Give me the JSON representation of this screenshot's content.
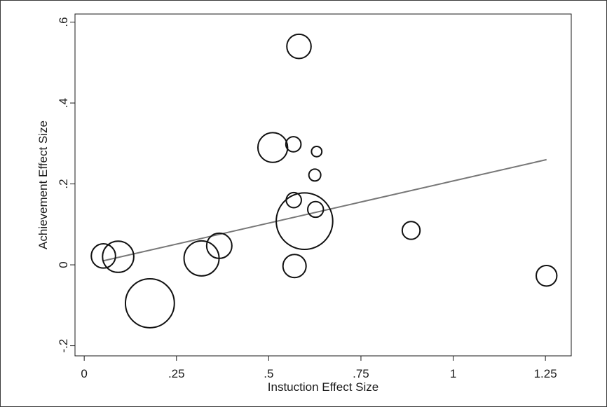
{
  "chart_data": {
    "type": "scatter",
    "xlabel": "Instuction Effect Size",
    "ylabel": "Achievement Effect Size",
    "xlim": [
      -0.025,
      1.32
    ],
    "ylim": [
      -0.225,
      0.62
    ],
    "x_ticks": [
      {
        "value": 0,
        "label": "0"
      },
      {
        "value": 0.25,
        "label": ".25"
      },
      {
        "value": 0.5,
        "label": ".5"
      },
      {
        "value": 0.75,
        "label": ".75"
      },
      {
        "value": 1,
        "label": "1"
      },
      {
        "value": 1.25,
        "label": "1.25"
      }
    ],
    "y_ticks": [
      {
        "value": -0.2,
        "label": "-.2"
      },
      {
        "value": 0,
        "label": "0"
      },
      {
        "value": 0.2,
        "label": ".2"
      },
      {
        "value": 0.4,
        "label": ".4"
      },
      {
        "value": 0.6,
        "label": ".6"
      }
    ],
    "points": [
      {
        "x": 0.052,
        "y": 0.022,
        "weight": 3.3
      },
      {
        "x": 0.092,
        "y": 0.02,
        "weight": 5.5
      },
      {
        "x": 0.178,
        "y": -0.095,
        "weight": 13.5
      },
      {
        "x": 0.318,
        "y": 0.016,
        "weight": 6.9
      },
      {
        "x": 0.366,
        "y": 0.047,
        "weight": 3.6
      },
      {
        "x": 0.511,
        "y": 0.29,
        "weight": 5.0
      },
      {
        "x": 0.567,
        "y": 0.298,
        "weight": 1.3
      },
      {
        "x": 0.568,
        "y": 0.16,
        "weight": 1.3
      },
      {
        "x": 0.57,
        "y": -0.003,
        "weight": 3.0
      },
      {
        "x": 0.582,
        "y": 0.54,
        "weight": 3.3
      },
      {
        "x": 0.597,
        "y": 0.108,
        "weight": 18.0
      },
      {
        "x": 0.625,
        "y": 0.222,
        "weight": 0.8
      },
      {
        "x": 0.627,
        "y": 0.137,
        "weight": 1.4
      },
      {
        "x": 0.63,
        "y": 0.28,
        "weight": 0.6
      },
      {
        "x": 0.886,
        "y": 0.085,
        "weight": 1.8
      },
      {
        "x": 1.253,
        "y": -0.027,
        "weight": 2.4
      }
    ],
    "fit_line": {
      "x": [
        0.052,
        1.253
      ],
      "y": [
        0.01,
        0.26
      ],
      "color": "#777777"
    },
    "grid": false,
    "legend": "none"
  }
}
